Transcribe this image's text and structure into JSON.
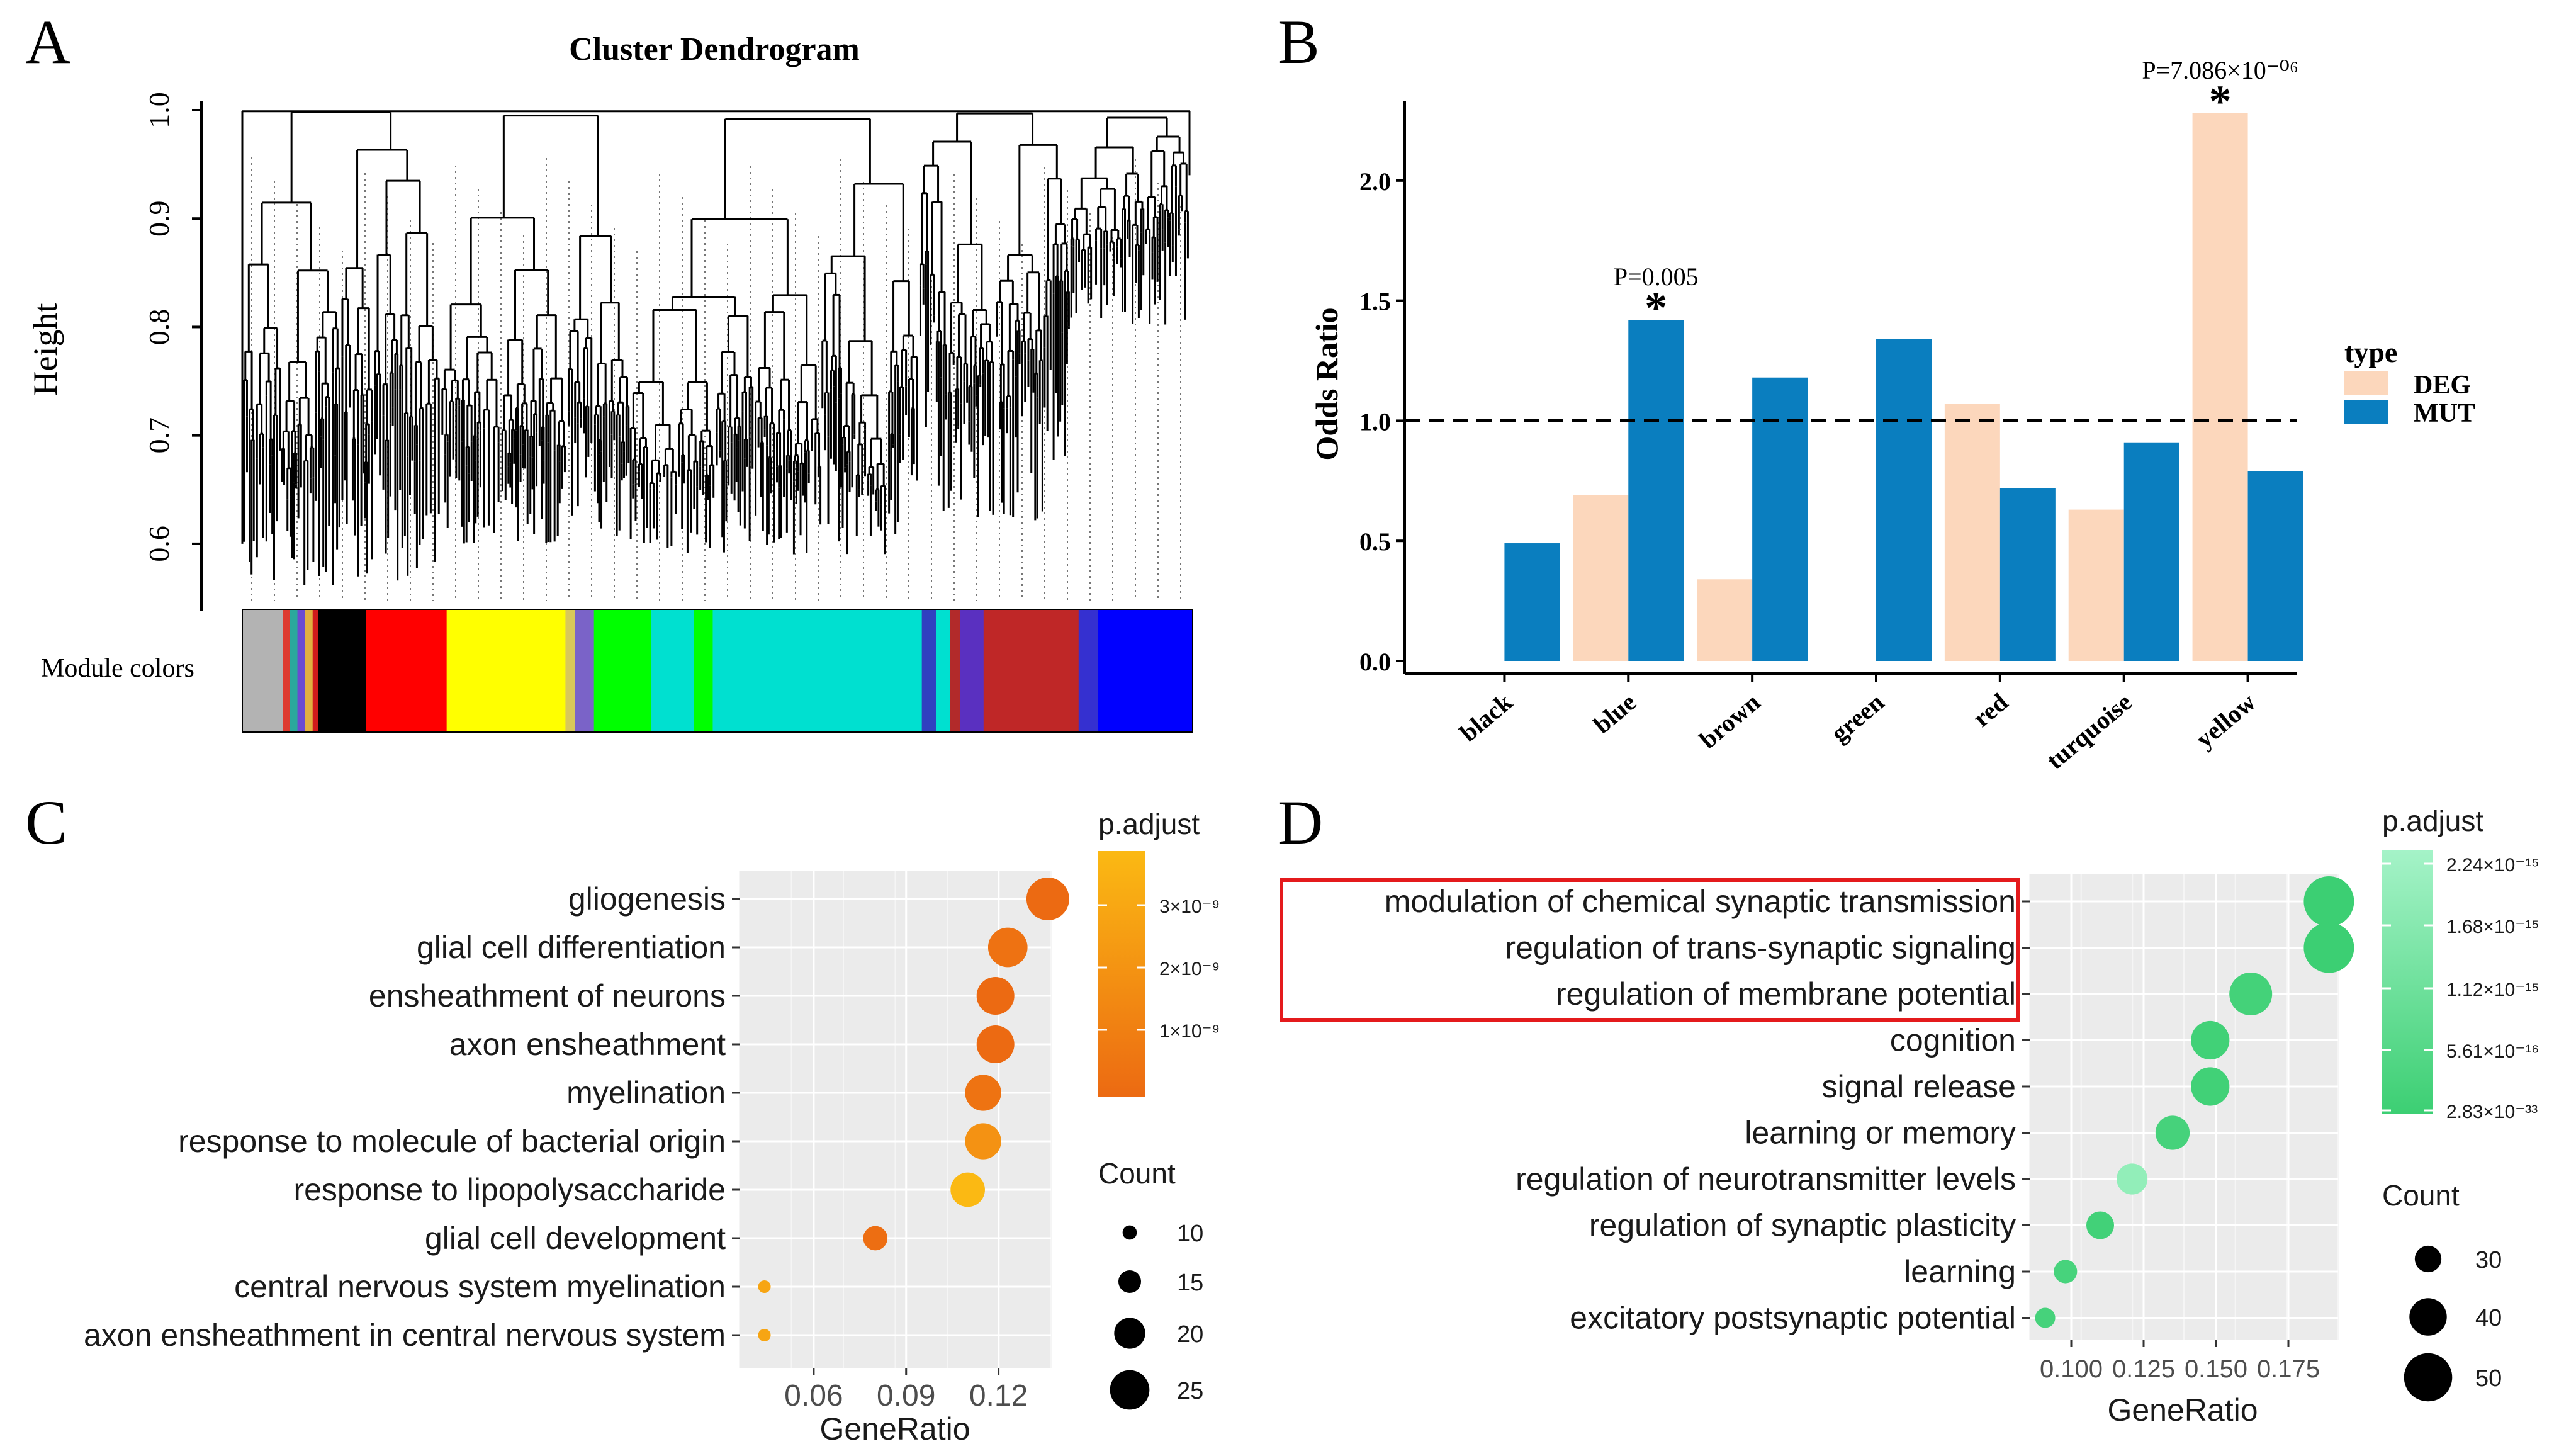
{
  "colors": {
    "deg": "#fcd7bc",
    "mut": "#0a7ebf",
    "red_box": "#e41a1c",
    "c_high": "#fbb913",
    "c_low": "#ec6a12",
    "d_high": "#9bf1c1",
    "d_low": "#3ccf73"
  },
  "panels": {
    "a": "A",
    "b": "B",
    "c": "C",
    "d": "D"
  },
  "chart_data": [
    {
      "type": "dendrogram",
      "title": "Cluster Dendrogram",
      "ylabel": "Height",
      "yticks": [
        "0.6",
        "0.7",
        "0.8",
        "0.9",
        "1.0"
      ],
      "ylim": [
        0.55,
        1.0
      ],
      "colorbar_label": "Module colors",
      "modules": [
        {
          "color": "#b3b3b3",
          "from": 0.0,
          "to": 0.043
        },
        {
          "color": "#dd3b30",
          "from": 0.043,
          "to": 0.05
        },
        {
          "color": "#2ba89c",
          "from": 0.05,
          "to": 0.058
        },
        {
          "color": "#6a4bd1",
          "from": 0.058,
          "to": 0.066
        },
        {
          "color": "#e0b040",
          "from": 0.066,
          "to": 0.074
        },
        {
          "color": "#cf1b1b",
          "from": 0.074,
          "to": 0.08
        },
        {
          "color": "#000000",
          "from": 0.08,
          "to": 0.1
        },
        {
          "color": "#000000",
          "from": 0.1,
          "to": 0.13
        },
        {
          "color": "#ff0000",
          "from": 0.13,
          "to": 0.215
        },
        {
          "color": "#ffff00",
          "from": 0.215,
          "to": 0.34
        },
        {
          "color": "#d8c85a",
          "from": 0.34,
          "to": 0.35
        },
        {
          "color": "#7a63c8",
          "from": 0.35,
          "to": 0.37
        },
        {
          "color": "#00ff00",
          "from": 0.37,
          "to": 0.43
        },
        {
          "color": "#00e0d0",
          "from": 0.43,
          "to": 0.475
        },
        {
          "color": "#00ff00",
          "from": 0.475,
          "to": 0.495
        },
        {
          "color": "#00e0d0",
          "from": 0.495,
          "to": 0.715
        },
        {
          "color": "#3040c0",
          "from": 0.715,
          "to": 0.73
        },
        {
          "color": "#00e0d0",
          "from": 0.73,
          "to": 0.745
        },
        {
          "color": "#b22a2a",
          "from": 0.745,
          "to": 0.755
        },
        {
          "color": "#5a30c0",
          "from": 0.755,
          "to": 0.78
        },
        {
          "color": "#bf2727",
          "from": 0.78,
          "to": 0.88
        },
        {
          "color": "#3530d0",
          "from": 0.88,
          "to": 0.9
        },
        {
          "color": "#0000ff",
          "from": 0.9,
          "to": 1.0
        }
      ]
    },
    {
      "type": "bar",
      "ylabel": "Odds Ratio",
      "categories": [
        "black",
        "blue",
        "brown",
        "green",
        "red",
        "turquoise",
        "yellow"
      ],
      "series": [
        {
          "name": "DEG",
          "values": [
            0.0,
            0.69,
            0.34,
            0.0,
            1.07,
            0.63,
            2.28
          ]
        },
        {
          "name": "MUT",
          "values": [
            0.49,
            1.42,
            1.18,
            1.34,
            0.72,
            0.91,
            0.79
          ]
        }
      ],
      "ylim": [
        0,
        2.28
      ],
      "yticks": [
        "0.0",
        "0.5",
        "1.0",
        "1.5",
        "2.0"
      ],
      "reference_line": 1.0,
      "legend_title": "type",
      "legend_position": "right",
      "annotations": [
        {
          "category": "blue",
          "series": "MUT",
          "pvalue": "P=0.005",
          "star": "*"
        },
        {
          "category": "yellow",
          "series": "DEG",
          "pvalue": "P=7.086×10⁻⁰⁶",
          "star": "*"
        }
      ]
    },
    {
      "type": "scatter",
      "xlabel": "GeneRatio",
      "x_range": [
        0.04,
        0.135
      ],
      "xticks": [
        "0.06",
        "0.09",
        "0.12"
      ],
      "color_title": "p.adjust",
      "color_ticks": [
        "3×10⁻⁹",
        "2×10⁻⁹",
        "1×10⁻⁹"
      ],
      "size_title": "Count",
      "size_ticks": [
        "10",
        "15",
        "20",
        "25"
      ],
      "terms": [
        {
          "term": "gliogenesis",
          "ratio": 0.136,
          "count": 27,
          "padj": 0.0
        },
        {
          "term": "glial cell differentiation",
          "ratio": 0.123,
          "count": 25,
          "padj": 0.1
        },
        {
          "term": "ensheathment of neurons",
          "ratio": 0.119,
          "count": 24,
          "padj": 0.0
        },
        {
          "term": "axon ensheathment",
          "ratio": 0.119,
          "count": 24,
          "padj": 0.0
        },
        {
          "term": "myelination",
          "ratio": 0.115,
          "count": 23,
          "padj": 0.12
        },
        {
          "term": "response to molecule of bacterial origin",
          "ratio": 0.115,
          "count": 23,
          "padj": 0.5
        },
        {
          "term": "response to lipopolysaccharide",
          "ratio": 0.11,
          "count": 22,
          "padj": 1.0
        },
        {
          "term": "glial cell development",
          "ratio": 0.08,
          "count": 16,
          "padj": 0.05
        },
        {
          "term": "central nervous system myelination",
          "ratio": 0.044,
          "count": 9,
          "padj": 0.75
        },
        {
          "term": "axon ensheathment in central nervous system",
          "ratio": 0.044,
          "count": 9,
          "padj": 0.75
        }
      ]
    },
    {
      "type": "scatter",
      "xlabel": "GeneRatio",
      "x_range": [
        0.09,
        0.19
      ],
      "xticks": [
        "0.100",
        "0.125",
        "0.150",
        "0.175"
      ],
      "color_title": "p.adjust",
      "color_ticks": [
        "2.24×10⁻¹⁵",
        "1.68×10⁻¹⁵",
        "1.12×10⁻¹⁵",
        "5.61×10⁻¹⁶",
        "2.83×10⁻³³"
      ],
      "size_title": "Count",
      "size_ticks": [
        "30",
        "40",
        "50"
      ],
      "terms": [
        {
          "term": "modulation of chemical synaptic transmission",
          "ratio": 0.189,
          "count": 52,
          "padj": 0.0
        },
        {
          "term": "regulation of trans-synaptic signaling",
          "ratio": 0.189,
          "count": 52,
          "padj": 0.0
        },
        {
          "term": "regulation of membrane potential",
          "ratio": 0.162,
          "count": 45,
          "padj": 0.08
        },
        {
          "term": "cognition",
          "ratio": 0.148,
          "count": 41,
          "padj": 0.05
        },
        {
          "term": "signal release",
          "ratio": 0.148,
          "count": 41,
          "padj": 0.05
        },
        {
          "term": "learning or memory",
          "ratio": 0.135,
          "count": 37,
          "padj": 0.1
        },
        {
          "term": "regulation of neurotransmitter levels",
          "ratio": 0.121,
          "count": 34,
          "padj": 0.9
        },
        {
          "term": "regulation of synaptic plasticity",
          "ratio": 0.11,
          "count": 31,
          "padj": 0.06
        },
        {
          "term": "learning",
          "ratio": 0.098,
          "count": 27,
          "padj": 0.12
        },
        {
          "term": "excitatory postsynaptic potential",
          "ratio": 0.091,
          "count": 24,
          "padj": 0.1
        }
      ],
      "highlight_terms": [
        0,
        1,
        2
      ]
    }
  ]
}
